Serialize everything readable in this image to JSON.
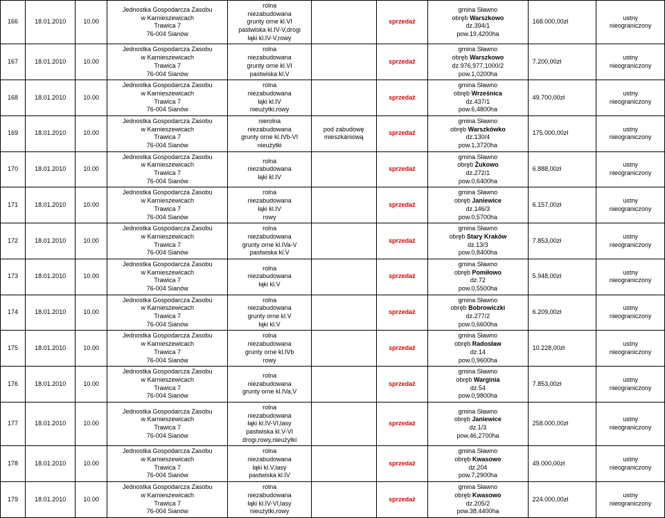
{
  "columns": {
    "unit": "Jednostka Gospodarcza Zasobu\nw Karnieszewicach\nTrawica 7\n76-004 Sianów",
    "ustny": "ustny\nnieograniczony",
    "sprzedaz": "sprzedaż",
    "gmina": "gmina Sławno"
  },
  "rows": [
    {
      "lp": "166",
      "date": "18.01.2010",
      "time": "10.00",
      "desc": "rolna\nniezabudowana\ngrunty orne kl.VI\npastwiska kl.IV-V,drogi\nłąki kl.IV-V,rowy",
      "pod": "",
      "obreb": "obręb <b>Warszkowo</b>\ndz.394/1\npow.19,4200ha",
      "price": "168.000,00zł"
    },
    {
      "lp": "167",
      "date": "18.01.2010",
      "time": "10.00",
      "desc": "rolna\nniezabudowana\ngrunty orne kl.VI\npastwiska kl.V",
      "pod": "",
      "obreb": "obręb <b>Warszkowo</b>\ndz.976,977,1000/2\npow.1,0200ha",
      "price": "7.200,00zł"
    },
    {
      "lp": "168",
      "date": "18.01.2010",
      "time": "10.00",
      "desc": "rolna\nniezabudowana\nłąki kl.IV\nnieużytki,rowy",
      "pod": "",
      "obreb": "obręb <b>Wrześnica</b>\ndz.437/1\npow.6,4800ha",
      "price": "49.700,00zł"
    },
    {
      "lp": "169",
      "date": "18.01.2010",
      "time": "10.00",
      "desc": "nierolna\nniezabudowana\ngrunty orne kl.IVb-VI\nnieużytki",
      "pod": "pod zabudowę\nmieszkaniową",
      "obreb": "obręb <b>Warszkówko</b>\ndz.130/4\npow.1,3720ha",
      "price": "175.000,00zł"
    },
    {
      "lp": "170",
      "date": "18.01.2010",
      "time": "10.00",
      "desc": "rolna\nniezabudowana\nłąki kl.IV",
      "pod": "",
      "obreb": "obręb <b>Żukowo</b>\ndz.272/1\npow.0,6400ha",
      "price": "6.888,00zł"
    },
    {
      "lp": "171",
      "date": "18.01.2010",
      "time": "10.00",
      "desc": "rolna\nniezabudowana\nłąki kl.IV\nrowy",
      "pod": "",
      "obreb": "obręb <b>Janiewice</b>\ndz.146/3\npow.0,5700ha",
      "price": "6.157,00zł"
    },
    {
      "lp": "172",
      "date": "18.01.2010",
      "time": "10.00",
      "desc": "rolna\nniezabudowana\ngrunty orne kl.IVa-V\npastwiska kl.V",
      "pod": "",
      "obreb": "obręb <b>Stary Kraków</b>\ndz.13/3\npow.0,8400ha",
      "price": "7.853,00zł"
    },
    {
      "lp": "173",
      "date": "18.01.2010",
      "time": "10.00",
      "desc": "rolna\nniezabudowana\nłąki kl.V",
      "pod": "",
      "obreb": "obręb <b>Pomiłowo</b>\ndz.72\npow.0,5500ha",
      "price": "5.948,00zł"
    },
    {
      "lp": "174",
      "date": "18.01.2010",
      "time": "10.00",
      "desc": "rolna\nniezabudowana\ngrunty orne kl.V\nłąki kl.V",
      "pod": "",
      "obreb": "obręb <b>Bobrowiczki</b>\ndz.277/2\npow.0,6600ha",
      "price": "6.209,00zł"
    },
    {
      "lp": "175",
      "date": "18.01.2010",
      "time": "10.00",
      "desc": "rolna\nniezabudowana\ngrunty orne kl.IVb\nrowy",
      "pod": "",
      "obreb": "obręb <b>Radosław</b>\ndz.14\npow.0,9600ha",
      "price": "10.228,00zł"
    },
    {
      "lp": "176",
      "date": "18.01.2010",
      "time": "10.00",
      "desc": "rolna\nniezabudowana\ngrunty orne kl.IVa,V",
      "pod": "",
      "obreb": "obręb <b>Warginia</b>\ndz.54\npow.0,9800ha",
      "price": "7.853,00zł"
    },
    {
      "lp": "177",
      "date": "18.01.2010",
      "time": "10.00",
      "desc": "rolna\nniezabudowana\nłąki kl.IV-VI,lasy\npastwiska kl.V-VI\ndrogi,rowy,nieużytki",
      "pod": "",
      "obreb": "obręb <b>Janiewice</b>\ndz.1/3\npow.46,2700ha",
      "price": "258.000,00zł"
    },
    {
      "lp": "178",
      "date": "18.01.2010",
      "time": "10.00",
      "desc": "rolna\nniezabudowana\nłąki kl.V,lasy\npastwiska kl.IV",
      "pod": "",
      "obreb": "obręb <b>Kwasowo</b>\ndz.204\npow.7,2900ha",
      "price": "49.000,00zł"
    },
    {
      "lp": "179",
      "date": "18.01.2010",
      "time": "10.00",
      "desc": "rolna\nniezabudowana\nłąki kl.IV-VI,lasy\nnieużytki,rowy",
      "pod": "",
      "obreb": "obręb <b>Kwasowo</b>\ndz.205/2\npow.38,4400ha",
      "price": "224.000,00zł"
    }
  ]
}
